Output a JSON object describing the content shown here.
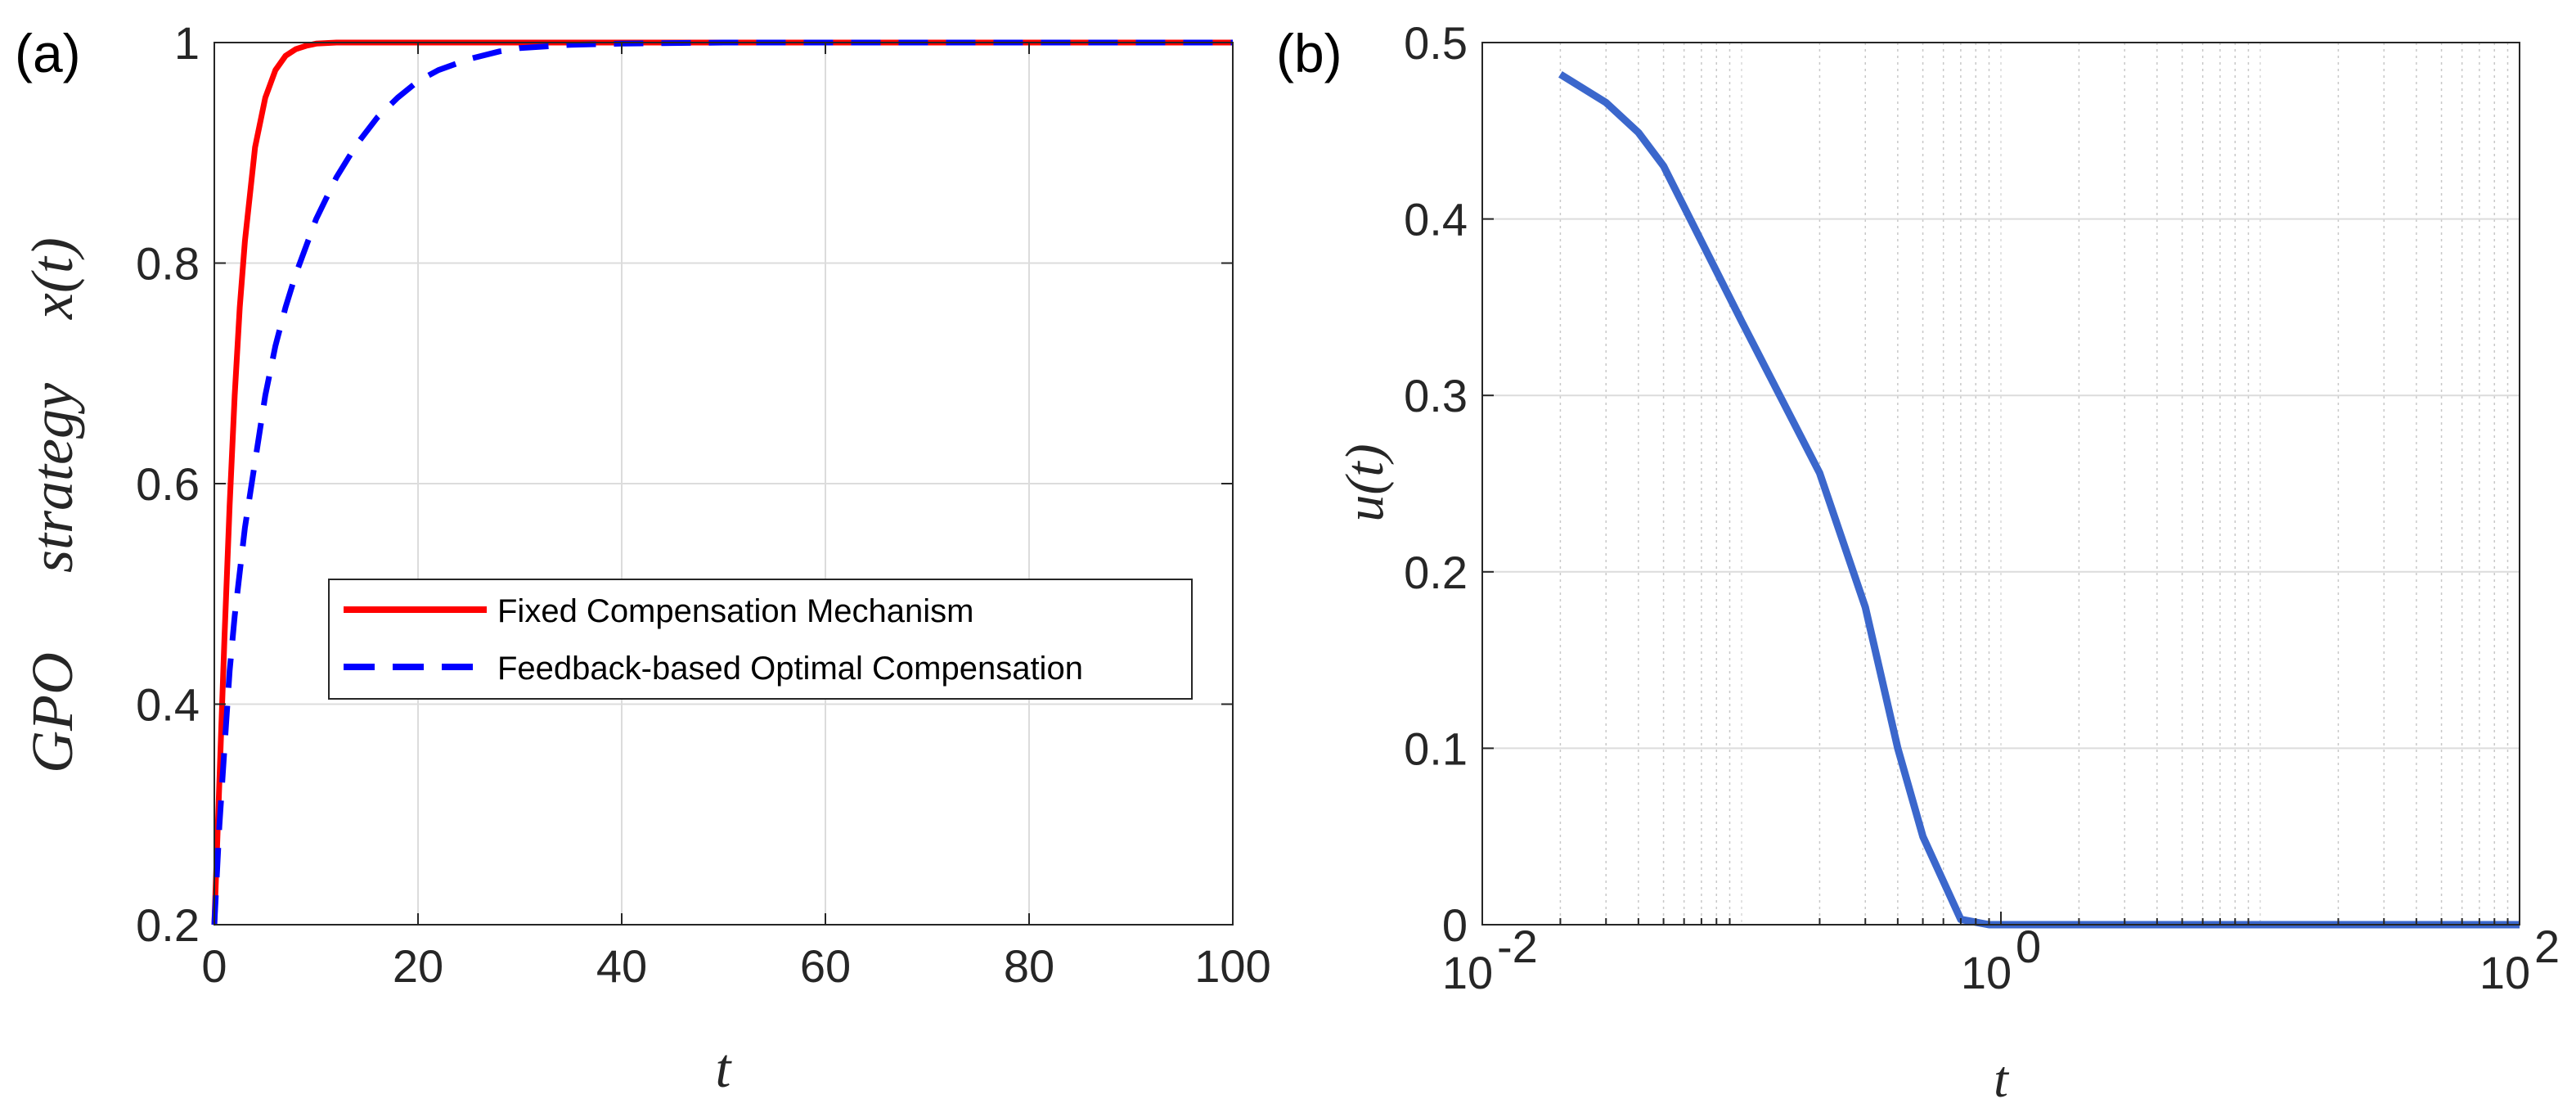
{
  "chart_data": [
    {
      "panel": "(a)",
      "type": "line",
      "xlabel": "t",
      "ylabel_parts": [
        "GPO",
        "strategy",
        "x(t)"
      ],
      "xlim": [
        0,
        100
      ],
      "ylim": [
        0.2,
        1
      ],
      "xticks": [
        0,
        20,
        40,
        60,
        80,
        100
      ],
      "yticks": [
        0.2,
        0.4,
        0.6,
        0.8,
        1
      ],
      "xtick_labels": [
        "0",
        "20",
        "40",
        "60",
        "80",
        "100"
      ],
      "ytick_labels": [
        "0.2",
        "0.4",
        "0.6",
        "0.8",
        "1"
      ],
      "grid": true,
      "legend_position": "center-right",
      "series": [
        {
          "name": "Fixed Compensation Mechanism",
          "color": "#ff0000",
          "style": "solid",
          "x": [
            0,
            0.5,
            1,
            1.5,
            2,
            2.5,
            3,
            4,
            5,
            6,
            7,
            8,
            9,
            10,
            12,
            15,
            20,
            30,
            40,
            60,
            80,
            100
          ],
          "y": [
            0.2,
            0.33,
            0.46,
            0.58,
            0.68,
            0.76,
            0.82,
            0.905,
            0.95,
            0.975,
            0.988,
            0.994,
            0.997,
            0.999,
            1,
            1,
            1,
            1,
            1,
            1,
            1,
            1
          ]
        },
        {
          "name": "Feedback-based Optimal Compensation",
          "color": "#0000ff",
          "style": "dashed",
          "x": [
            0,
            0.5,
            1,
            1.5,
            2,
            3,
            4,
            5,
            6,
            7,
            8,
            10,
            12,
            14,
            16,
            18,
            20,
            22,
            25,
            28,
            30,
            35,
            40,
            50,
            60,
            80,
            100
          ],
          "y": [
            0.2,
            0.29,
            0.36,
            0.43,
            0.48,
            0.56,
            0.62,
            0.68,
            0.725,
            0.76,
            0.79,
            0.84,
            0.878,
            0.908,
            0.932,
            0.95,
            0.965,
            0.975,
            0.985,
            0.992,
            0.995,
            0.998,
            0.999,
            1,
            1,
            1,
            1
          ]
        }
      ]
    },
    {
      "panel": "(b)",
      "type": "line",
      "xscale": "log",
      "xlabel": "t",
      "ylabel": "u(t)",
      "xlim": [
        0.01,
        100
      ],
      "ylim": [
        0,
        0.5
      ],
      "xticks": [
        0.01,
        1,
        100
      ],
      "xtick_base": "10",
      "xtick_exponents": [
        "-2",
        "0",
        "2"
      ],
      "yticks": [
        0,
        0.1,
        0.2,
        0.3,
        0.4,
        0.5
      ],
      "ytick_labels": [
        "0",
        "0.1",
        "0.2",
        "0.3",
        "0.4",
        "0.5"
      ],
      "grid": true,
      "series": [
        {
          "name": "u(t)",
          "color": "#3b67cc",
          "style": "solid",
          "x": [
            0.02,
            0.03,
            0.04,
            0.05,
            0.1,
            0.2,
            0.3,
            0.4,
            0.5,
            0.7,
            0.9,
            1,
            1.2,
            2,
            5,
            10,
            50,
            100
          ],
          "y": [
            0.482,
            0.466,
            0.449,
            0.43,
            0.342,
            0.256,
            0.18,
            0.1,
            0.05,
            0.003,
            0,
            0,
            0,
            0,
            0,
            0,
            0,
            0
          ]
        }
      ]
    }
  ]
}
